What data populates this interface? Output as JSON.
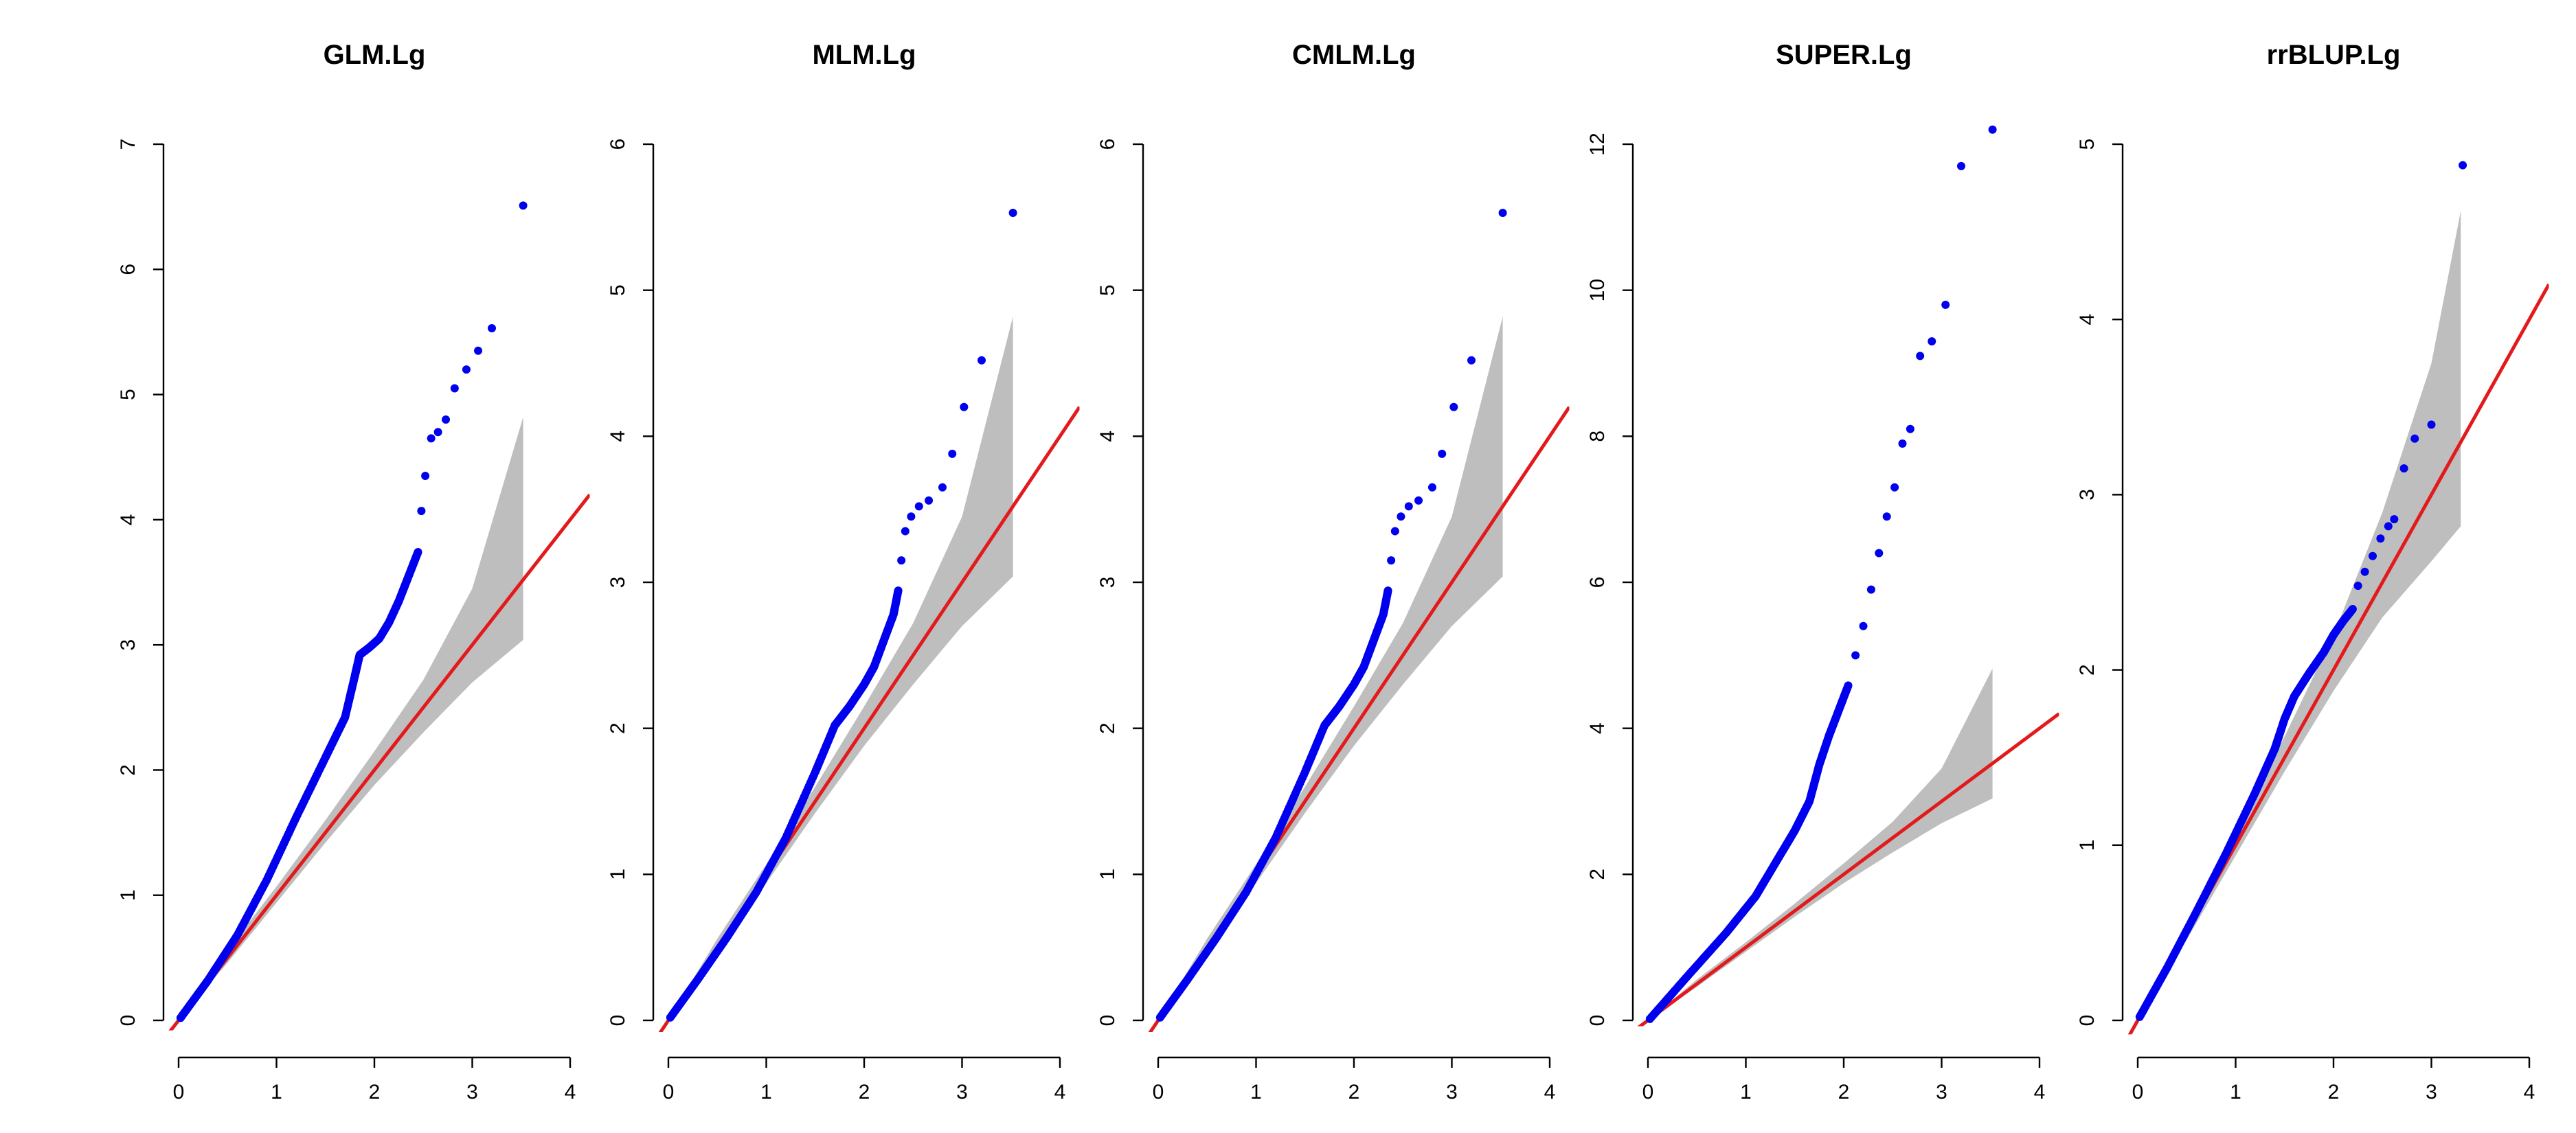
{
  "colors": {
    "points": "#0000ee",
    "line": "#e31a1c",
    "band": "#bebebe"
  },
  "chart_data": [
    {
      "type": "scatter",
      "title": "GLM.Lg",
      "xlabel": "",
      "ylabel": "",
      "xlim": [
        0,
        4
      ],
      "ylim": [
        0,
        7
      ],
      "xticks": [
        "0",
        "1",
        "2",
        "3",
        "4"
      ],
      "yticks": [
        "0",
        "1",
        "2",
        "3",
        "4",
        "5",
        "6",
        "7"
      ],
      "ref_line_slope": 1,
      "band": {
        "x": [
          0,
          0.5,
          1,
          1.5,
          2,
          2.5,
          3,
          3.52
        ],
        "lower": [
          0,
          0.46,
          0.94,
          1.42,
          1.88,
          2.3,
          2.7,
          3.04
        ],
        "upper": [
          0,
          0.56,
          1.07,
          1.6,
          2.15,
          2.72,
          3.45,
          4.82
        ]
      },
      "curve": {
        "x": [
          0.02,
          0.3,
          0.6,
          0.9,
          1.2,
          1.5,
          1.7,
          1.8,
          1.85,
          1.95,
          2.05,
          2.15,
          2.25,
          2.35,
          2.45
        ],
        "y": [
          0.02,
          0.32,
          0.68,
          1.12,
          1.62,
          2.1,
          2.42,
          2.75,
          2.92,
          2.98,
          3.05,
          3.18,
          3.35,
          3.55,
          3.75
        ]
      },
      "top_points": {
        "x": [
          2.48,
          2.52,
          2.58,
          2.65,
          2.73,
          2.82,
          2.94,
          3.06,
          3.2,
          3.52
        ],
        "y": [
          4.07,
          4.35,
          4.65,
          4.7,
          4.8,
          5.05,
          5.2,
          5.35,
          5.53,
          6.51
        ]
      }
    },
    {
      "type": "scatter",
      "title": "MLM.Lg",
      "xlabel": "",
      "ylabel": "",
      "xlim": [
        0,
        4
      ],
      "ylim": [
        0,
        6
      ],
      "xticks": [
        "0",
        "1",
        "2",
        "3",
        "4"
      ],
      "yticks": [
        "0",
        "1",
        "2",
        "3",
        "4",
        "5",
        "6"
      ],
      "ref_line_slope": 1,
      "band": {
        "x": [
          0,
          0.5,
          1,
          1.5,
          2,
          2.5,
          3,
          3.52
        ],
        "lower": [
          0,
          0.46,
          0.94,
          1.42,
          1.88,
          2.3,
          2.7,
          3.04
        ],
        "upper": [
          0,
          0.56,
          1.07,
          1.6,
          2.15,
          2.72,
          3.45,
          4.82
        ]
      },
      "curve": {
        "x": [
          0.02,
          0.3,
          0.6,
          0.9,
          1.2,
          1.5,
          1.7,
          1.85,
          2.0,
          2.1,
          2.2,
          2.3,
          2.35
        ],
        "y": [
          0.02,
          0.28,
          0.57,
          0.88,
          1.25,
          1.7,
          2.02,
          2.15,
          2.3,
          2.42,
          2.6,
          2.78,
          2.95
        ]
      },
      "top_points": {
        "x": [
          2.38,
          2.42,
          2.48,
          2.56,
          2.66,
          2.8,
          2.9,
          3.02,
          3.2,
          3.52
        ],
        "y": [
          3.15,
          3.35,
          3.45,
          3.52,
          3.56,
          3.65,
          3.88,
          4.2,
          4.52,
          5.53
        ]
      }
    },
    {
      "type": "scatter",
      "title": "CMLM.Lg",
      "xlabel": "",
      "ylabel": "",
      "xlim": [
        0,
        4
      ],
      "ylim": [
        0,
        6
      ],
      "xticks": [
        "0",
        "1",
        "2",
        "3",
        "4"
      ],
      "yticks": [
        "0",
        "1",
        "2",
        "3",
        "4",
        "5",
        "6"
      ],
      "ref_line_slope": 1,
      "band": {
        "x": [
          0,
          0.5,
          1,
          1.5,
          2,
          2.5,
          3,
          3.52
        ],
        "lower": [
          0,
          0.46,
          0.94,
          1.42,
          1.88,
          2.3,
          2.7,
          3.04
        ],
        "upper": [
          0,
          0.56,
          1.07,
          1.6,
          2.15,
          2.72,
          3.45,
          4.82
        ]
      },
      "curve": {
        "x": [
          0.02,
          0.3,
          0.6,
          0.9,
          1.2,
          1.5,
          1.7,
          1.85,
          2.0,
          2.1,
          2.2,
          2.3,
          2.35
        ],
        "y": [
          0.02,
          0.28,
          0.57,
          0.88,
          1.25,
          1.7,
          2.02,
          2.15,
          2.3,
          2.42,
          2.6,
          2.78,
          2.95
        ]
      },
      "top_points": {
        "x": [
          2.38,
          2.42,
          2.48,
          2.56,
          2.66,
          2.8,
          2.9,
          3.02,
          3.2,
          3.52
        ],
        "y": [
          3.15,
          3.35,
          3.45,
          3.52,
          3.56,
          3.65,
          3.88,
          4.2,
          4.52,
          5.53
        ]
      }
    },
    {
      "type": "scatter",
      "title": "SUPER.Lg",
      "xlabel": "",
      "ylabel": "",
      "xlim": [
        0,
        4
      ],
      "ylim": [
        0,
        13
      ],
      "xticks": [
        "0",
        "1",
        "2",
        "3",
        "4"
      ],
      "yticks": [
        "0",
        "2",
        "4",
        "6",
        "8",
        "10",
        "12"
      ],
      "ref_line_slope": 1,
      "band": {
        "x": [
          0,
          0.5,
          1,
          1.5,
          2,
          2.5,
          3,
          3.52
        ],
        "lower": [
          0,
          0.46,
          0.94,
          1.42,
          1.88,
          2.3,
          2.7,
          3.04
        ],
        "upper": [
          0,
          0.56,
          1.07,
          1.6,
          2.15,
          2.72,
          3.45,
          4.82
        ]
      },
      "curve": {
        "x": [
          0.02,
          0.4,
          0.8,
          1.1,
          1.3,
          1.5,
          1.65,
          1.75,
          1.85,
          1.95,
          2.05
        ],
        "y": [
          0.02,
          0.6,
          1.2,
          1.7,
          2.15,
          2.6,
          3.0,
          3.5,
          3.9,
          4.25,
          4.6
        ]
      },
      "top_points": {
        "x": [
          2.12,
          2.2,
          2.28,
          2.36,
          2.44,
          2.52,
          2.6,
          2.68,
          2.78,
          2.9,
          3.04,
          3.2,
          3.52
        ],
        "y": [
          5.0,
          5.4,
          5.9,
          6.4,
          6.9,
          7.3,
          7.9,
          8.1,
          9.1,
          9.3,
          9.8,
          11.7,
          12.2
        ]
      }
    },
    {
      "type": "scatter",
      "title": "rrBLUP.Lg",
      "xlabel": "",
      "ylabel": "",
      "xlim": [
        0,
        4
      ],
      "ylim": [
        0,
        5
      ],
      "xticks": [
        "0",
        "1",
        "2",
        "3",
        "4"
      ],
      "yticks": [
        "0",
        "1",
        "2",
        "3",
        "4",
        "5"
      ],
      "ref_line_slope": 1,
      "band": {
        "x": [
          0,
          0.5,
          1,
          1.5,
          2,
          2.5,
          3,
          3.3
        ],
        "lower": [
          0,
          0.46,
          0.94,
          1.42,
          1.88,
          2.3,
          2.62,
          2.82
        ],
        "upper": [
          0,
          0.56,
          1.07,
          1.62,
          2.2,
          2.9,
          3.75,
          4.62
        ]
      },
      "curve": {
        "x": [
          0.02,
          0.3,
          0.6,
          0.9,
          1.2,
          1.4,
          1.5,
          1.6,
          1.75,
          1.9,
          2.0,
          2.1,
          2.2
        ],
        "y": [
          0.02,
          0.3,
          0.62,
          0.95,
          1.3,
          1.55,
          1.72,
          1.85,
          1.98,
          2.1,
          2.2,
          2.28,
          2.35
        ]
      },
      "top_points": {
        "x": [
          2.25,
          2.32,
          2.4,
          2.48,
          2.56,
          2.62,
          2.72,
          2.83,
          3.0,
          3.32
        ],
        "y": [
          2.48,
          2.56,
          2.65,
          2.75,
          2.82,
          2.86,
          3.15,
          3.32,
          3.4,
          4.88
        ]
      }
    }
  ]
}
